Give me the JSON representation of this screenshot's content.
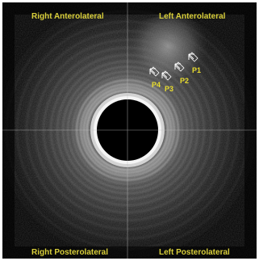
{
  "image": {
    "kind": "endoscopic ultrasound cross-section",
    "colors": {
      "background": "#000000",
      "label": "#d9cf3a",
      "crosshair": "#bfbfbf",
      "marker_outline": "#ffffff"
    }
  },
  "quadrants": {
    "top_left": "Right Anterolateral",
    "top_right": "Left Anterolateral",
    "bottom_left": "Right Posterolateral",
    "bottom_right": "Left Posterolateral"
  },
  "markers": [
    {
      "label": "P1"
    },
    {
      "label": "P2"
    },
    {
      "label": "P3"
    },
    {
      "label": "P4"
    }
  ]
}
